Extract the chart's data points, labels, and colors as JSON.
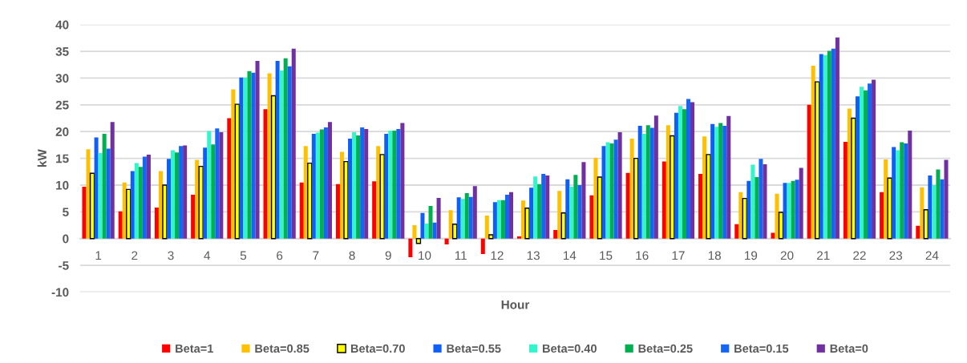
{
  "chart_data": {
    "type": "bar",
    "xlabel": "Hour",
    "ylabel": "kW",
    "categories": [
      "1",
      "2",
      "3",
      "4",
      "5",
      "6",
      "7",
      "8",
      "9",
      "10",
      "11",
      "12",
      "13",
      "14",
      "15",
      "16",
      "17",
      "18",
      "19",
      "20",
      "21",
      "22",
      "23",
      "24"
    ],
    "series": [
      {
        "name": "Beta=1",
        "color": "#ff0000",
        "values": [
          9.7,
          5.1,
          5.8,
          8.2,
          22.5,
          24.2,
          10.5,
          10.2,
          10.7,
          -3.5,
          -1.1,
          -2.9,
          0.4,
          1.6,
          8.1,
          12.3,
          14.4,
          12.1,
          2.7,
          1.1,
          25.0,
          18.1,
          8.7,
          2.4
        ]
      },
      {
        "name": "Beta=0.85",
        "color": "#ffc000",
        "values": [
          16.7,
          10.5,
          12.6,
          14.7,
          27.9,
          30.9,
          17.3,
          16.2,
          17.3,
          2.5,
          5.3,
          4.3,
          7.1,
          8.9,
          15.1,
          18.7,
          21.2,
          19.1,
          8.7,
          8.4,
          32.3,
          24.3,
          14.8,
          9.6
        ]
      },
      {
        "name": "Beta=0.70",
        "color": "#ffff00",
        "values": [
          12.2,
          9.2,
          10.0,
          13.5,
          25.1,
          26.7,
          14.1,
          14.4,
          15.7,
          -0.9,
          2.7,
          0.7,
          5.7,
          4.8,
          11.5,
          15.0,
          19.2,
          15.7,
          7.5,
          4.9,
          29.3,
          22.5,
          11.3,
          5.4
        ]
      },
      {
        "name": "Beta=0.55",
        "color": "#0f5ef7",
        "values": [
          18.9,
          12.6,
          14.9,
          17.0,
          30.1,
          33.2,
          19.6,
          18.7,
          19.6,
          4.8,
          7.7,
          6.8,
          9.5,
          11.1,
          17.3,
          21.1,
          23.5,
          21.4,
          10.8,
          10.4,
          34.5,
          26.6,
          17.1,
          11.8
        ]
      },
      {
        "name": "Beta=0.40",
        "color": "#33f5cc",
        "values": [
          16.0,
          14.1,
          16.5,
          20.1,
          30.1,
          31.4,
          19.8,
          19.9,
          20.2,
          2.8,
          7.4,
          7.2,
          11.6,
          9.7,
          18.0,
          19.6,
          24.8,
          20.9,
          13.8,
          10.4,
          34.3,
          28.4,
          16.5,
          10.0
        ]
      },
      {
        "name": "Beta=0.25",
        "color": "#00b050",
        "values": [
          19.6,
          13.4,
          16.1,
          17.6,
          31.3,
          33.7,
          20.4,
          19.3,
          20.2,
          6.1,
          8.5,
          7.2,
          10.2,
          11.9,
          17.8,
          21.2,
          24.2,
          21.6,
          11.5,
          10.8,
          35.1,
          27.7,
          18.0,
          12.9
        ]
      },
      {
        "name": "Beta=0.15",
        "color": "#1467f5",
        "values": [
          16.8,
          15.3,
          17.3,
          20.6,
          31.0,
          32.2,
          20.8,
          20.8,
          20.5,
          3.0,
          7.8,
          8.2,
          12.1,
          10.0,
          18.5,
          20.7,
          26.1,
          21.1,
          14.9,
          11.0,
          35.5,
          29.0,
          17.8,
          11.1
        ]
      },
      {
        "name": "Beta=0",
        "color": "#7030a0",
        "values": [
          21.8,
          15.7,
          17.4,
          19.9,
          33.2,
          35.5,
          21.8,
          20.5,
          21.6,
          7.6,
          9.8,
          8.7,
          11.8,
          14.3,
          19.9,
          23.0,
          25.5,
          22.9,
          13.9,
          13.2,
          37.6,
          29.7,
          20.2,
          14.7
        ]
      }
    ],
    "ylim": [
      -10,
      40
    ],
    "yticks": [
      -10,
      -5,
      0,
      5,
      10,
      15,
      20,
      25,
      30,
      35,
      40
    ],
    "grid": "y",
    "legend": "bottom"
  }
}
